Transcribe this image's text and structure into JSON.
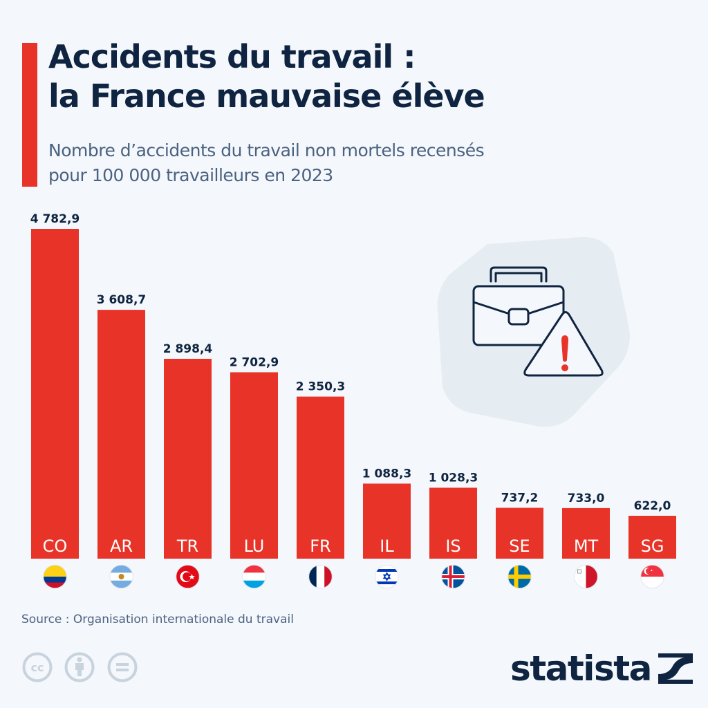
{
  "header": {
    "title_line1": "Accidents du travail :",
    "title_line2": "la France mauvaise élève",
    "subtitle_line1": "Nombre d’accidents du travail non mortels recensés",
    "subtitle_line2": "pour 100 000 travailleurs en 2023"
  },
  "chart_data": {
    "type": "bar",
    "title": "Accidents du travail : la France mauvaise élève",
    "subtitle": "Nombre d’accidents du travail non mortels recensés pour 100 000 travailleurs en 2023",
    "xlabel": "",
    "ylabel": "",
    "categories": [
      "CO",
      "AR",
      "TR",
      "LU",
      "FR",
      "IL",
      "IS",
      "SE",
      "MT",
      "SG"
    ],
    "values": [
      4782.9,
      3608.7,
      2898.4,
      2702.9,
      2350.3,
      1088.3,
      1028.3,
      737.2,
      733.0,
      622.0
    ],
    "value_labels": [
      "4 782,9",
      "3 608,7",
      "2 898,4",
      "2 702,9",
      "2 350,3",
      "1 088,3",
      "1 028,3",
      "737,2",
      "733,0",
      "622,0"
    ],
    "flags": [
      "colombia-flag-icon",
      "argentina-flag-icon",
      "turkey-flag-icon",
      "luxembourg-flag-icon",
      "france-flag-icon",
      "israel-flag-icon",
      "iceland-flag-icon",
      "sweden-flag-icon",
      "malta-flag-icon",
      "singapore-flag-icon"
    ],
    "ylim": [
      0,
      4782.9
    ],
    "grid": false,
    "legend": "none",
    "bar_color": "#e83328"
  },
  "illustration": {
    "icon": "briefcase-warning-icon"
  },
  "footer": {
    "source": "Source : Organisation internationale du travail",
    "license_icons": [
      "creative-commons-icon",
      "attribution-icon",
      "no-derivatives-icon"
    ],
    "logo_text": "statista"
  },
  "colors": {
    "accent": "#e83328",
    "title": "#0f2440",
    "subtitle": "#4a6280",
    "background": "#f4f7fb"
  }
}
